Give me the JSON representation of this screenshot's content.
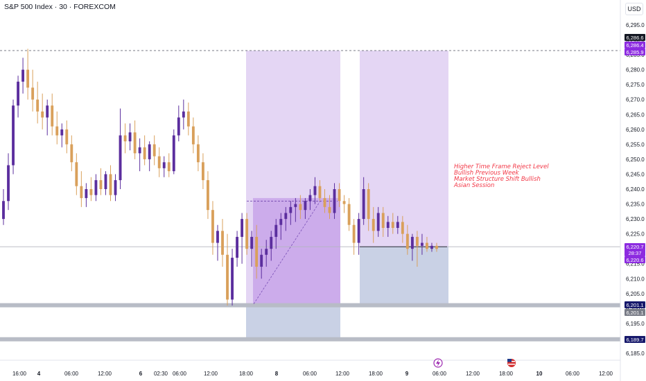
{
  "header": {
    "symbol_title": "S&P 500 Index · 30 · FOREXCOM",
    "currency": "USD"
  },
  "annotations": [
    "Higher Time Frame Reject Level",
    "Bullish Previous Week",
    "Market Structure Shift Bullish",
    "Asian Session"
  ],
  "colors": {
    "bull": "#5b2e9e",
    "bear": "#d9a05b",
    "zone": "#d8c4f0",
    "zone_inner": "#c49ee8",
    "stop_zone": "#b7c2dc",
    "support": "#b8bcc6",
    "annotation": "#f23645",
    "label_dark": "#16186b",
    "label_purple": "#8c2be0",
    "label_black": "#131722"
  },
  "price_labels": [
    {
      "text": "6,286.6",
      "kind": "black"
    },
    {
      "text": "6,286.4",
      "kind": "purple"
    },
    {
      "text": "6,285.9",
      "kind": "purple"
    },
    {
      "text": "6,220.7",
      "kind": "purple"
    },
    {
      "text": "28:37",
      "kind": "purple"
    },
    {
      "text": "6,220.6",
      "kind": "purple"
    },
    {
      "text": "6,201.1",
      "kind": "dark"
    },
    {
      "text": "6,201.1",
      "kind": "gray"
    },
    {
      "text": "6,189.7",
      "kind": "dark"
    }
  ],
  "event_icons": [
    "lightning-icon",
    "us-flag-icon"
  ],
  "chart_data": {
    "type": "candlestick",
    "title": "S&P 500 Index · 30 · FOREXCOM",
    "ylim": [
      6183,
      6299
    ],
    "y_ticks": [
      6185,
      6190,
      6195,
      6200,
      6205,
      6210,
      6215,
      6220,
      6225,
      6230,
      6235,
      6240,
      6245,
      6250,
      6255,
      6260,
      6265,
      6270,
      6275,
      6280,
      6285,
      6290,
      6295
    ],
    "x_ticks": [
      "16:00",
      "4",
      "06:00",
      "12:00",
      "6",
      "02:30",
      "06:00",
      "12:00",
      "18:00",
      "8",
      "06:00",
      "12:00",
      "18:00",
      "9",
      "06:00",
      "12:00",
      "18:00",
      "10",
      "06:00",
      "12:00"
    ],
    "levels": [
      {
        "name": "Higher Time Frame Reject Level",
        "value": 6286.4,
        "style": "dashed"
      },
      {
        "name": "last price",
        "value": 6220.7,
        "style": "solid"
      },
      {
        "name": "support",
        "value": 6201.1,
        "style": "band"
      },
      {
        "name": "support",
        "value": 6189.7,
        "style": "band"
      }
    ],
    "zones": [
      {
        "kind": "target",
        "y0": 6201.1,
        "y1": 6286.4
      },
      {
        "kind": "entry",
        "y0": 6201.1,
        "y1": 6237.0
      },
      {
        "kind": "stop",
        "y0": 6189.7,
        "y1": 6201.1
      },
      {
        "kind": "target",
        "y0": 6220.7,
        "y1": 6286.4
      },
      {
        "kind": "stop",
        "y0": 6201.1,
        "y1": 6220.7
      }
    ],
    "candles": [
      {
        "o": 6230,
        "h": 6240,
        "l": 6228,
        "c": 6236
      },
      {
        "o": 6236,
        "h": 6252,
        "l": 6233,
        "c": 6248
      },
      {
        "o": 6248,
        "h": 6270,
        "l": 6245,
        "c": 6268
      },
      {
        "o": 6268,
        "h": 6278,
        "l": 6264,
        "c": 6276
      },
      {
        "o": 6276,
        "h": 6284,
        "l": 6272,
        "c": 6280
      },
      {
        "o": 6280,
        "h": 6287,
        "l": 6270,
        "c": 6274
      },
      {
        "o": 6274,
        "h": 6280,
        "l": 6266,
        "c": 6270
      },
      {
        "o": 6270,
        "h": 6276,
        "l": 6262,
        "c": 6266
      },
      {
        "o": 6266,
        "h": 6272,
        "l": 6260,
        "c": 6264
      },
      {
        "o": 6264,
        "h": 6270,
        "l": 6258,
        "c": 6268
      },
      {
        "o": 6268,
        "h": 6272,
        "l": 6258,
        "c": 6261
      },
      {
        "o": 6261,
        "h": 6266,
        "l": 6255,
        "c": 6258
      },
      {
        "o": 6258,
        "h": 6262,
        "l": 6254,
        "c": 6260
      },
      {
        "o": 6260,
        "h": 6263,
        "l": 6252,
        "c": 6255
      },
      {
        "o": 6255,
        "h": 6258,
        "l": 6246,
        "c": 6249
      },
      {
        "o": 6249,
        "h": 6252,
        "l": 6238,
        "c": 6241
      },
      {
        "o": 6241,
        "h": 6246,
        "l": 6234,
        "c": 6237
      },
      {
        "o": 6237,
        "h": 6242,
        "l": 6234,
        "c": 6240
      },
      {
        "o": 6240,
        "h": 6244,
        "l": 6236,
        "c": 6238
      },
      {
        "o": 6238,
        "h": 6245,
        "l": 6236,
        "c": 6243
      },
      {
        "o": 6243,
        "h": 6247,
        "l": 6238,
        "c": 6240
      },
      {
        "o": 6240,
        "h": 6246,
        "l": 6238,
        "c": 6245
      },
      {
        "o": 6245,
        "h": 6248,
        "l": 6236,
        "c": 6238
      },
      {
        "o": 6238,
        "h": 6245,
        "l": 6236,
        "c": 6243
      },
      {
        "o": 6243,
        "h": 6267,
        "l": 6240,
        "c": 6258
      },
      {
        "o": 6258,
        "h": 6262,
        "l": 6252,
        "c": 6256
      },
      {
        "o": 6256,
        "h": 6262,
        "l": 6253,
        "c": 6259
      },
      {
        "o": 6259,
        "h": 6263,
        "l": 6250,
        "c": 6252
      },
      {
        "o": 6252,
        "h": 6257,
        "l": 6246,
        "c": 6254
      },
      {
        "o": 6254,
        "h": 6258,
        "l": 6248,
        "c": 6250
      },
      {
        "o": 6250,
        "h": 6256,
        "l": 6246,
        "c": 6255
      },
      {
        "o": 6255,
        "h": 6258,
        "l": 6248,
        "c": 6251
      },
      {
        "o": 6251,
        "h": 6254,
        "l": 6244,
        "c": 6247
      },
      {
        "o": 6247,
        "h": 6251,
        "l": 6244,
        "c": 6249
      },
      {
        "o": 6249,
        "h": 6252,
        "l": 6244,
        "c": 6246
      },
      {
        "o": 6246,
        "h": 6260,
        "l": 6245,
        "c": 6258
      },
      {
        "o": 6258,
        "h": 6268,
        "l": 6256,
        "c": 6264
      },
      {
        "o": 6264,
        "h": 6270,
        "l": 6260,
        "c": 6266
      },
      {
        "o": 6266,
        "h": 6269,
        "l": 6258,
        "c": 6261
      },
      {
        "o": 6261,
        "h": 6264,
        "l": 6252,
        "c": 6255
      },
      {
        "o": 6255,
        "h": 6258,
        "l": 6246,
        "c": 6249
      },
      {
        "o": 6249,
        "h": 6252,
        "l": 6240,
        "c": 6243
      },
      {
        "o": 6243,
        "h": 6246,
        "l": 6230,
        "c": 6233
      },
      {
        "o": 6233,
        "h": 6236,
        "l": 6218,
        "c": 6222
      },
      {
        "o": 6222,
        "h": 6228,
        "l": 6216,
        "c": 6226
      },
      {
        "o": 6226,
        "h": 6230,
        "l": 6214,
        "c": 6218
      },
      {
        "o": 6218,
        "h": 6225,
        "l": 6201,
        "c": 6203
      },
      {
        "o": 6203,
        "h": 6220,
        "l": 6201,
        "c": 6217
      },
      {
        "o": 6217,
        "h": 6226,
        "l": 6214,
        "c": 6224
      },
      {
        "o": 6224,
        "h": 6232,
        "l": 6215,
        "c": 6230
      },
      {
        "o": 6230,
        "h": 6232,
        "l": 6218,
        "c": 6220
      },
      {
        "o": 6220,
        "h": 6226,
        "l": 6214,
        "c": 6224
      },
      {
        "o": 6224,
        "h": 6228,
        "l": 6210,
        "c": 6214
      },
      {
        "o": 6214,
        "h": 6220,
        "l": 6210,
        "c": 6218
      },
      {
        "o": 6218,
        "h": 6223,
        "l": 6214,
        "c": 6220
      },
      {
        "o": 6220,
        "h": 6226,
        "l": 6216,
        "c": 6224
      },
      {
        "o": 6224,
        "h": 6230,
        "l": 6220,
        "c": 6228
      },
      {
        "o": 6228,
        "h": 6232,
        "l": 6223,
        "c": 6230
      },
      {
        "o": 6230,
        "h": 6234,
        "l": 6226,
        "c": 6232
      },
      {
        "o": 6232,
        "h": 6236,
        "l": 6228,
        "c": 6234
      },
      {
        "o": 6234,
        "h": 6237,
        "l": 6229,
        "c": 6235
      },
      {
        "o": 6235,
        "h": 6238,
        "l": 6230,
        "c": 6233
      },
      {
        "o": 6233,
        "h": 6237,
        "l": 6230,
        "c": 6236
      },
      {
        "o": 6236,
        "h": 6240,
        "l": 6233,
        "c": 6238
      },
      {
        "o": 6238,
        "h": 6244,
        "l": 6235,
        "c": 6241
      },
      {
        "o": 6241,
        "h": 6243,
        "l": 6236,
        "c": 6237
      },
      {
        "o": 6237,
        "h": 6240,
        "l": 6232,
        "c": 6234
      },
      {
        "o": 6234,
        "h": 6238,
        "l": 6230,
        "c": 6232
      },
      {
        "o": 6232,
        "h": 6242,
        "l": 6230,
        "c": 6240
      },
      {
        "o": 6240,
        "h": 6242,
        "l": 6234,
        "c": 6236
      },
      {
        "o": 6236,
        "h": 6238,
        "l": 6232,
        "c": 6235
      },
      {
        "o": 6235,
        "h": 6237,
        "l": 6226,
        "c": 6228
      },
      {
        "o": 6228,
        "h": 6230,
        "l": 6218,
        "c": 6222
      },
      {
        "o": 6222,
        "h": 6232,
        "l": 6218,
        "c": 6230
      },
      {
        "o": 6230,
        "h": 6244,
        "l": 6228,
        "c": 6240
      },
      {
        "o": 6240,
        "h": 6242,
        "l": 6226,
        "c": 6230
      },
      {
        "o": 6230,
        "h": 6234,
        "l": 6222,
        "c": 6226
      },
      {
        "o": 6226,
        "h": 6234,
        "l": 6224,
        "c": 6232
      },
      {
        "o": 6232,
        "h": 6234,
        "l": 6224,
        "c": 6227
      },
      {
        "o": 6227,
        "h": 6231,
        "l": 6224,
        "c": 6229
      },
      {
        "o": 6229,
        "h": 6232,
        "l": 6225,
        "c": 6227
      },
      {
        "o": 6227,
        "h": 6231,
        "l": 6225,
        "c": 6229
      },
      {
        "o": 6229,
        "h": 6231,
        "l": 6222,
        "c": 6225
      },
      {
        "o": 6225,
        "h": 6228,
        "l": 6218,
        "c": 6220
      },
      {
        "o": 6220,
        "h": 6225,
        "l": 6216,
        "c": 6224
      },
      {
        "o": 6224,
        "h": 6226,
        "l": 6214,
        "c": 6221
      },
      {
        "o": 6221,
        "h": 6225,
        "l": 6218,
        "c": 6222
      },
      {
        "o": 6222,
        "h": 6224,
        "l": 6219,
        "c": 6220
      },
      {
        "o": 6220,
        "h": 6222,
        "l": 6219,
        "c": 6221
      },
      {
        "o": 6221,
        "h": 6222,
        "l": 6219,
        "c": 6220
      }
    ]
  }
}
